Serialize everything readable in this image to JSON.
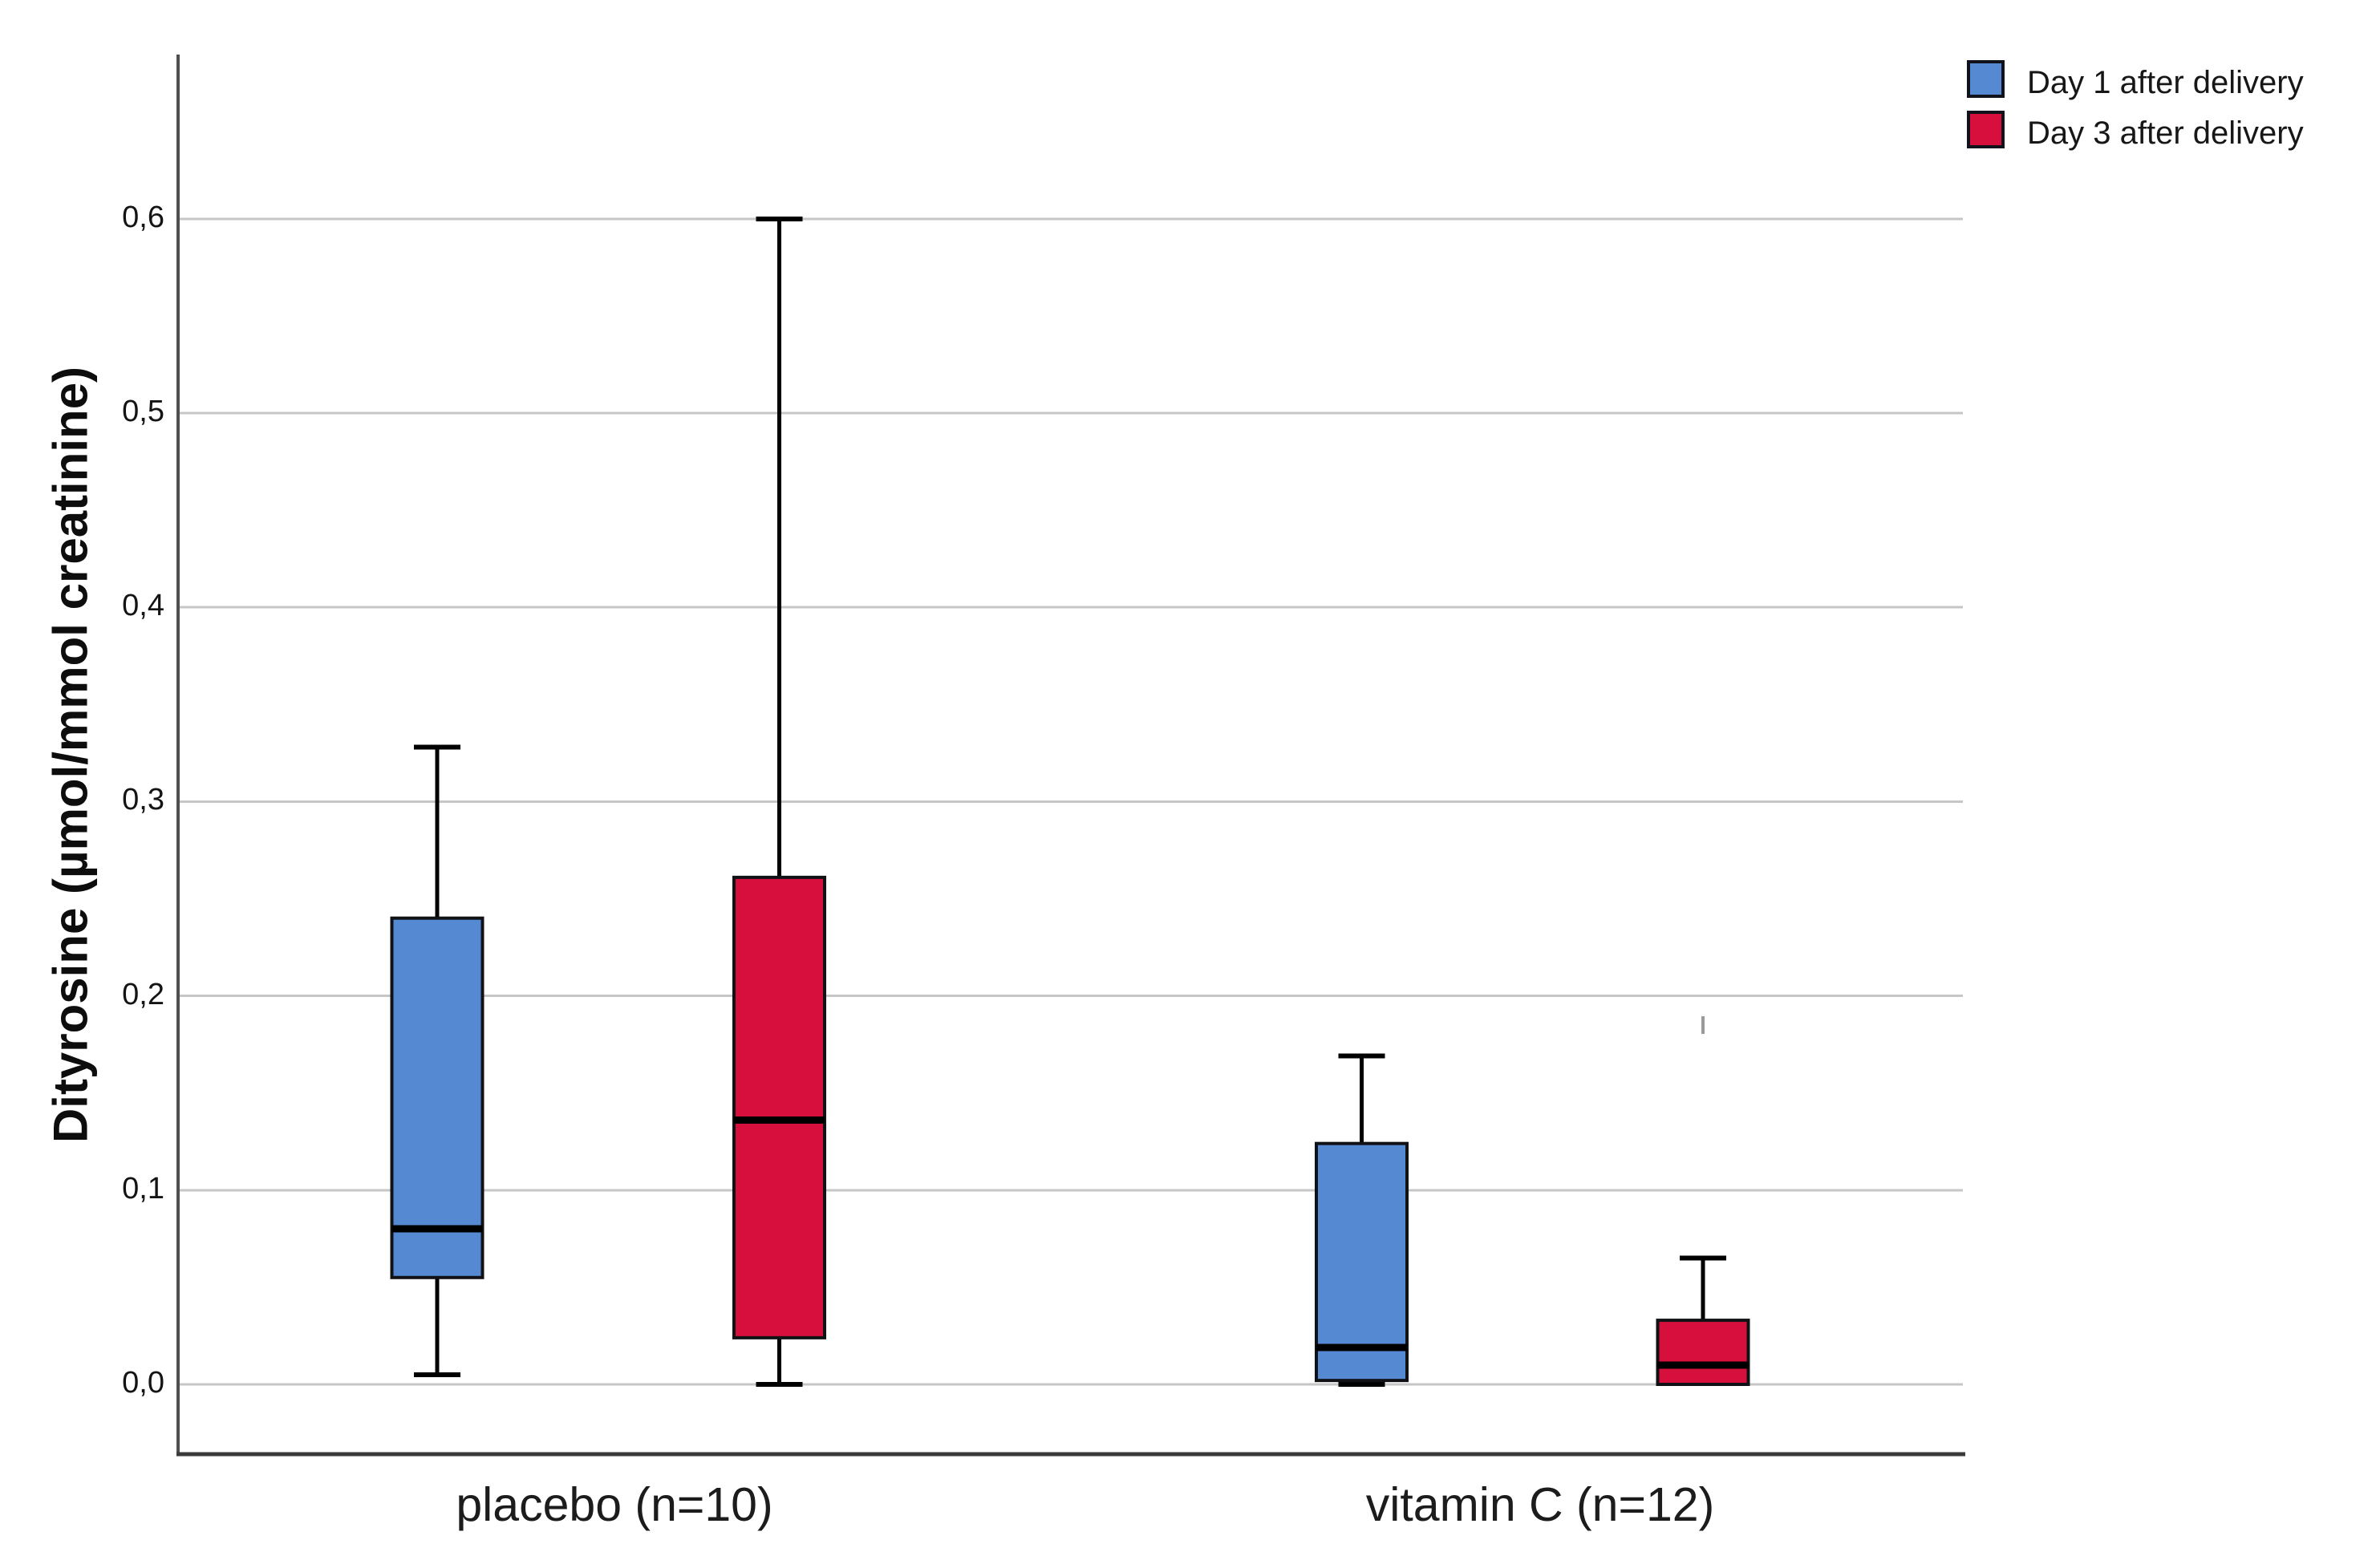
{
  "chart_data": {
    "type": "boxplot",
    "title": "",
    "ylabel": "Dityrosine (µmol/mmol creatinine)",
    "xlabel": "",
    "categories": [
      "placebo (n=10)",
      "vitamin C (n=12)"
    ],
    "series": [
      {
        "name": "Day 1 after delivery",
        "color": "#5589d2",
        "boxes": [
          {
            "category": "placebo (n=10)",
            "min": 0.005,
            "q1": 0.055,
            "median": 0.08,
            "q3": 0.24,
            "max": 0.328
          },
          {
            "category": "vitamin C (n=12)",
            "min": 0.0,
            "q1": 0.002,
            "median": 0.019,
            "q3": 0.124,
            "max": 0.169
          }
        ]
      },
      {
        "name": "Day 3 after delivery",
        "color": "#d60f3c",
        "boxes": [
          {
            "category": "placebo (n=10)",
            "min": 0.0,
            "q1": 0.024,
            "median": 0.136,
            "q3": 0.261,
            "max": 0.6
          },
          {
            "category": "vitamin C (n=12)",
            "min": 0.0,
            "q1": 0.0,
            "median": 0.01,
            "q3": 0.033,
            "max": 0.065
          }
        ]
      }
    ],
    "yticks": [
      0.0,
      0.1,
      0.2,
      0.3,
      0.4,
      0.5,
      0.6
    ],
    "ytick_labels": [
      "0,0",
      "0,1",
      "0,2",
      "0,3",
      "0,4",
      "0,5",
      "0,6"
    ],
    "decimal_separator": ",",
    "ylim": [
      -0.036,
      0.685
    ],
    "grid": true,
    "legend_position": "top-right",
    "colors": {
      "day1_fill": "#5589d2",
      "day3_fill": "#d60f3c",
      "box_stroke": "#101216",
      "median": "#000000",
      "whisker": "#000000",
      "gridline": "#c6c6c6",
      "y_axis": "#4f4f4f",
      "x_axis": "#3a3a3a",
      "background": "#ffffff"
    }
  },
  "legend": {
    "items": [
      {
        "label": "Day 1 after delivery",
        "color": "#5589d2"
      },
      {
        "label": "Day 3 after delivery",
        "color": "#d60f3c"
      }
    ]
  }
}
